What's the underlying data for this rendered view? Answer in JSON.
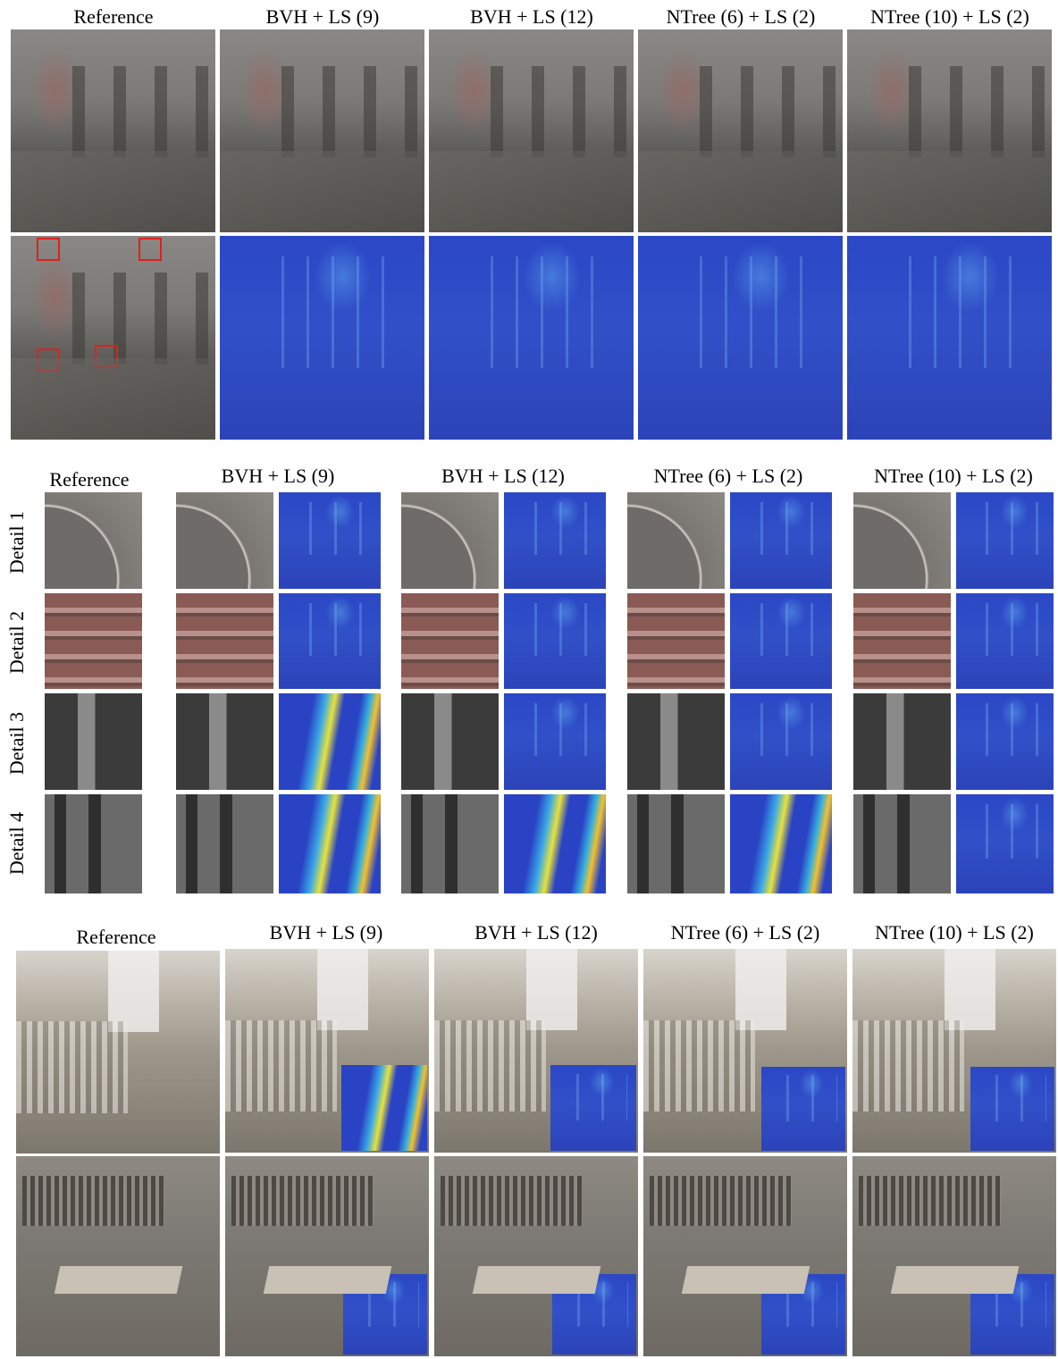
{
  "top_section": {
    "headers": [
      "Reference",
      "BVH + LS (9)",
      "BVH + LS (12)",
      "NTree (6) + LS (2)",
      "NTree (10) + LS (2)"
    ]
  },
  "detail_section": {
    "headers": [
      "Reference",
      "BVH + LS (9)",
      "BVH + LS (12)",
      "NTree (6) + LS (2)",
      "NTree (10) + LS (2)"
    ],
    "rows": [
      "Detail 1",
      "Detail 2",
      "Detail 3",
      "Detail 4"
    ]
  },
  "bottom_section": {
    "headers": [
      "Reference",
      "BVH + LS (9)",
      "BVH + LS (12)",
      "NTree (6) + LS (2)",
      "NTree (10) + LS (2)"
    ]
  }
}
